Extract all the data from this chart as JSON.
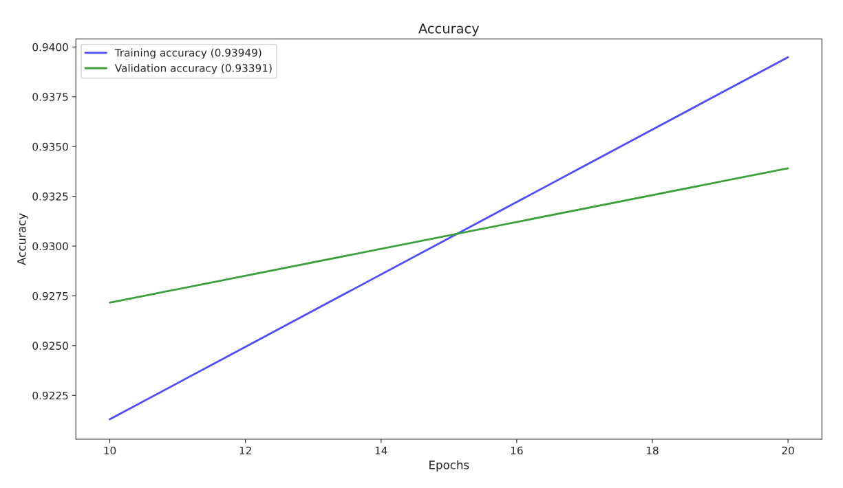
{
  "chart_data": {
    "type": "line",
    "title": "Accuracy",
    "xlabel": "Epochs",
    "ylabel": "Accuracy",
    "x": [
      10,
      20
    ],
    "series": [
      {
        "name": "Training accuracy (0.93949)",
        "color": "#4d4dff",
        "values": [
          0.9213,
          0.93949
        ]
      },
      {
        "name": "Validation accuracy (0.93391)",
        "color": "#3ca03c",
        "values": [
          0.92716,
          0.93391
        ]
      }
    ],
    "xlim": [
      9.5,
      20.5
    ],
    "xticks": [
      10,
      12,
      14,
      16,
      18,
      20
    ],
    "ylim": [
      0.9203,
      0.9404
    ],
    "yticks": [
      {
        "value": 0.9225,
        "label": "0.9225"
      },
      {
        "value": 0.925,
        "label": "0.9250"
      },
      {
        "value": 0.9275,
        "label": "0.9275"
      },
      {
        "value": 0.93,
        "label": "0.9300"
      },
      {
        "value": 0.9325,
        "label": "0.9325"
      },
      {
        "value": 0.935,
        "label": "0.9350"
      },
      {
        "value": 0.9375,
        "label": "0.9375"
      },
      {
        "value": 0.94,
        "label": "0.9400"
      }
    ],
    "grid": false,
    "legend": "top left",
    "marker": "none",
    "line_style": "solid"
  }
}
